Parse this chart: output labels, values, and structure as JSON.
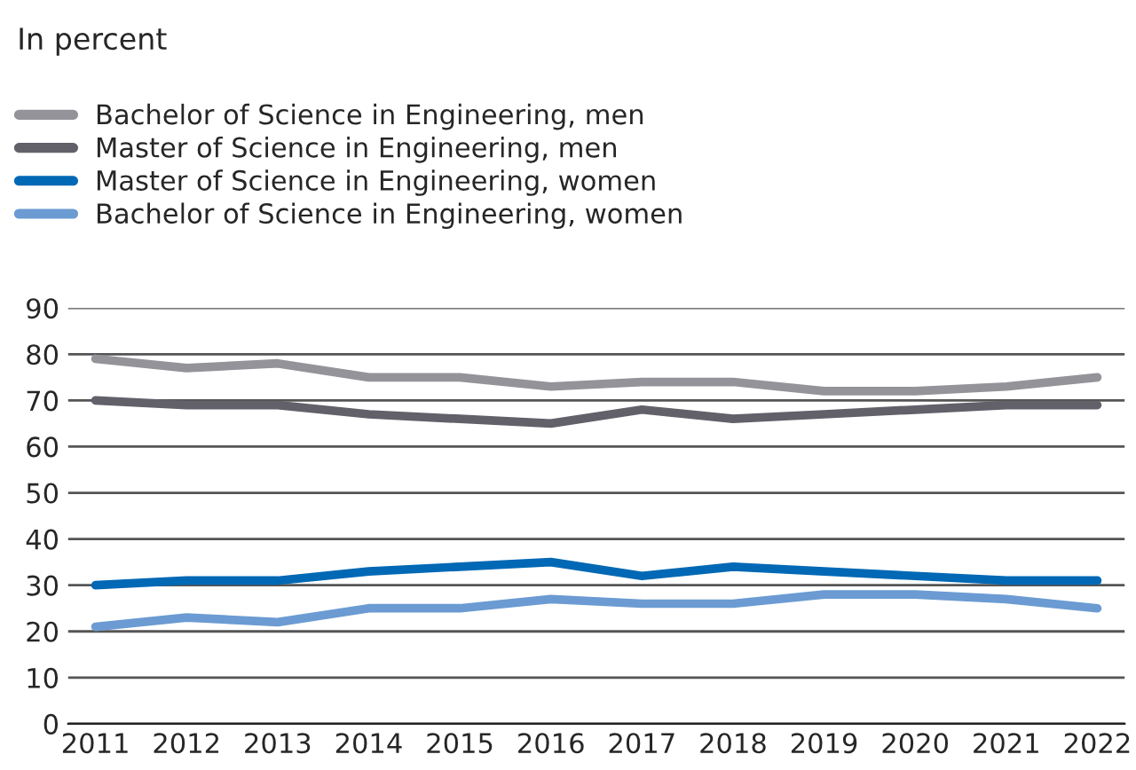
{
  "chart_data": {
    "type": "line",
    "title": "In percent",
    "categories": [
      "2011",
      "2012",
      "2013",
      "2014",
      "2015",
      "2016",
      "2017",
      "2018",
      "2019",
      "2020",
      "2021",
      "2022"
    ],
    "series": [
      {
        "name": "Bachelor of Science in Engineering, men",
        "color": "#939399",
        "values": [
          79,
          77,
          78,
          75,
          75,
          73,
          74,
          74,
          72,
          72,
          73,
          75
        ]
      },
      {
        "name": "Master of Science in Engineering, men",
        "color": "#626069",
        "values": [
          70,
          69,
          69,
          67,
          66,
          65,
          68,
          66,
          67,
          68,
          69,
          69
        ]
      },
      {
        "name": "Master of Science in Engineering, women",
        "color": "#0068b4",
        "values": [
          30,
          31,
          31,
          33,
          34,
          35,
          32,
          34,
          33,
          32,
          31,
          31
        ]
      },
      {
        "name": "Bachelor of Science in Engineering, women",
        "color": "#6b9bd2",
        "values": [
          21,
          23,
          22,
          25,
          25,
          27,
          26,
          26,
          28,
          28,
          27,
          25
        ]
      }
    ],
    "ylim": [
      0,
      90
    ],
    "yticks": [
      0,
      10,
      20,
      30,
      40,
      50,
      60,
      70,
      80,
      90
    ],
    "grid": "y",
    "legend": "top left",
    "marker": "none",
    "line_style": "solid"
  }
}
